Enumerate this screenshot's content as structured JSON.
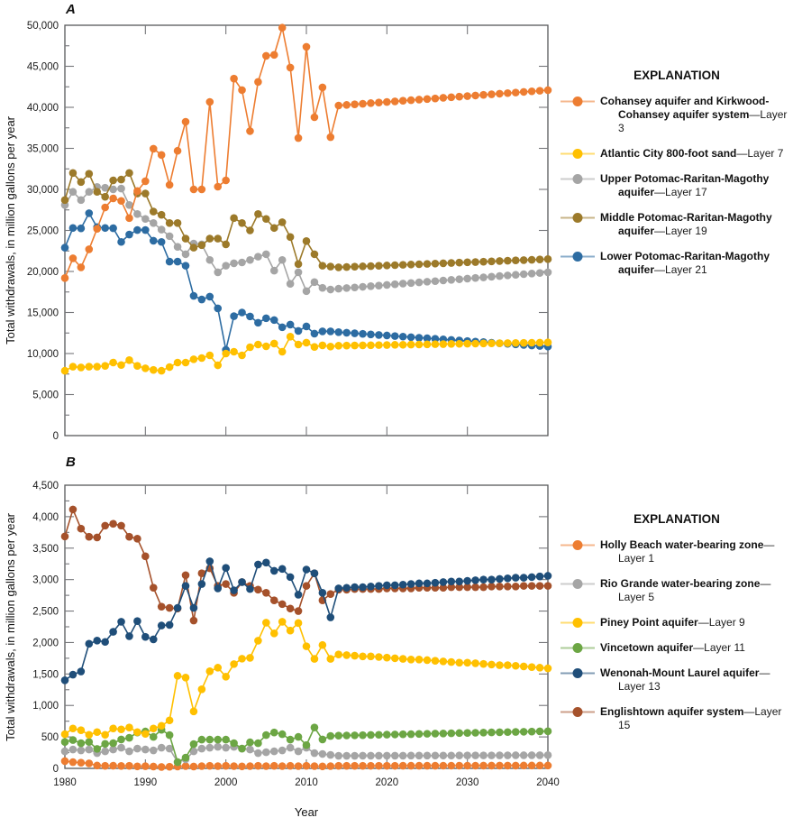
{
  "chart_data": [
    {
      "panel_label": "A",
      "type": "line",
      "ylabel": "Total withdrawals, in million gallons per year",
      "xlabel": "",
      "legend_title": "EXPLANATION",
      "ylim": [
        0,
        50000
      ],
      "ytick_major": 5000,
      "ytick_minor": 2500,
      "x": {
        "start": 1980,
        "end": 2040,
        "tick_step": 10
      },
      "grid": false,
      "legend_position": "right",
      "series": [
        {
          "label_bold": "Cohansey aquifer and Kirkwood-Cohansey aquifer system",
          "label_rest": "Layer 3",
          "layer_num": 3,
          "color": "#ED7D31",
          "values": [
            19200,
            21600,
            20500,
            22700,
            25200,
            27800,
            28900,
            28600,
            26500,
            29800,
            31000,
            34950,
            34200,
            30550,
            34700,
            38240,
            30000,
            30000,
            40660,
            30330,
            31100,
            43500,
            42100,
            37100,
            43100,
            46270,
            46390,
            49700,
            44840,
            36260,
            47370,
            38790,
            42420,
            36370,
            40220,
            40290,
            40360,
            40430,
            40510,
            40580,
            40650,
            40720,
            40800,
            40870,
            40940,
            41010,
            41080,
            41160,
            41230,
            41300,
            41370,
            41440,
            41520,
            41590,
            41660,
            41730,
            41800,
            41880,
            41950,
            42020,
            42090
          ]
        },
        {
          "label_bold": "Atlantic City 800-foot sand",
          "label_rest": "Layer 7",
          "layer_num": 7,
          "color": "#FFC000",
          "values": [
            7900,
            8400,
            8300,
            8400,
            8400,
            8500,
            8900,
            8600,
            9200,
            8500,
            8200,
            8000,
            7900,
            8350,
            8900,
            8900,
            9300,
            9450,
            9780,
            8570,
            10000,
            10220,
            9780,
            10770,
            11100,
            10880,
            11220,
            10220,
            12050,
            11100,
            11330,
            10800,
            11000,
            10850,
            10950,
            10970,
            10980,
            11000,
            11010,
            11030,
            11040,
            11060,
            11070,
            11090,
            11100,
            11120,
            11140,
            11150,
            11170,
            11180,
            11200,
            11210,
            11230,
            11240,
            11260,
            11270,
            11290,
            11300,
            11320,
            11330,
            11350
          ]
        },
        {
          "label_bold": "Upper Potomac-Raritan-Magothy aquifer",
          "label_rest": "Layer 17",
          "layer_num": 17,
          "color": "#A5A5A5",
          "values": [
            28100,
            29700,
            28700,
            29700,
            30300,
            30200,
            30000,
            30100,
            28100,
            27000,
            26400,
            25900,
            25100,
            24300,
            23000,
            22100,
            23400,
            23300,
            21400,
            19900,
            20700,
            21000,
            21100,
            21400,
            21800,
            22100,
            20100,
            21400,
            18500,
            19900,
            17600,
            18700,
            18000,
            17800,
            17900,
            17980,
            18050,
            18130,
            18210,
            18280,
            18360,
            18440,
            18520,
            18590,
            18670,
            18750,
            18820,
            18900,
            18980,
            19050,
            19130,
            19210,
            19280,
            19360,
            19440,
            19520,
            19590,
            19670,
            19750,
            19820,
            19900
          ]
        },
        {
          "label_bold": "Middle Potomac-Raritan-Magothy aquifer",
          "label_rest": "Layer 19",
          "layer_num": 19,
          "color": "#9C7A2A",
          "values": [
            28700,
            32000,
            30900,
            31900,
            29700,
            29100,
            31100,
            31200,
            32000,
            29500,
            29500,
            27300,
            26900,
            25900,
            25900,
            24000,
            22900,
            23200,
            24000,
            24000,
            23300,
            26500,
            25900,
            25000,
            27000,
            26400,
            25300,
            26000,
            24200,
            20900,
            23700,
            22100,
            20700,
            20600,
            20500,
            20540,
            20580,
            20620,
            20650,
            20690,
            20730,
            20770,
            20810,
            20850,
            20880,
            20920,
            20960,
            21000,
            21040,
            21080,
            21120,
            21150,
            21190,
            21230,
            21270,
            21310,
            21350,
            21380,
            21420,
            21460,
            21500
          ]
        },
        {
          "label_bold": "Lower Potomac-Raritan-Magothy aquifer",
          "label_rest": "Layer 21",
          "layer_num": 21,
          "color": "#2D6CA2",
          "values": [
            22900,
            25300,
            25250,
            27100,
            25400,
            25300,
            25270,
            23600,
            24500,
            25050,
            25050,
            23740,
            23600,
            21200,
            21200,
            20700,
            17030,
            16590,
            16930,
            15500,
            10450,
            14550,
            15000,
            14520,
            13750,
            14300,
            14080,
            13200,
            13520,
            12750,
            13300,
            12420,
            12700,
            12700,
            12600,
            12530,
            12470,
            12400,
            12330,
            12260,
            12200,
            12130,
            12060,
            11990,
            11920,
            11860,
            11790,
            11720,
            11660,
            11590,
            11520,
            11450,
            11390,
            11320,
            11250,
            11180,
            11120,
            11050,
            10980,
            10920,
            10850
          ]
        }
      ]
    },
    {
      "panel_label": "B",
      "type": "line",
      "ylabel": "Total withdrawals, in million gallons per year",
      "xlabel": "Year",
      "legend_title": "EXPLANATION",
      "ylim": [
        0,
        4500
      ],
      "ytick_major": 500,
      "ytick_minor": 250,
      "x": {
        "start": 1980,
        "end": 2040,
        "tick_step": 10
      },
      "grid": false,
      "legend_position": "right",
      "series": [
        {
          "label_bold": "Holly Beach water-bearing zone",
          "label_rest": "Layer 1",
          "layer_num": 1,
          "color": "#ED7D31",
          "values": [
            115,
            100,
            90,
            80,
            45,
            40,
            42,
            38,
            40,
            32,
            35,
            30,
            22,
            26,
            30,
            36,
            30,
            36,
            40,
            36,
            40,
            36,
            32,
            36,
            40,
            36,
            40,
            36,
            40,
            36,
            40,
            36,
            32,
            36,
            40,
            40,
            40,
            40,
            41,
            41,
            41,
            41,
            42,
            42,
            42,
            42,
            42,
            43,
            43,
            43,
            43,
            43,
            44,
            44,
            44,
            44,
            44,
            45,
            45,
            45,
            45
          ]
        },
        {
          "label_bold": "Rio Grande water-bearing zone",
          "label_rest": "Layer 5",
          "layer_num": 5,
          "color": "#A5A5A5",
          "values": [
            271,
            300,
            286,
            300,
            243,
            271,
            300,
            329,
            271,
            314,
            300,
            286,
            329,
            314,
            100,
            143,
            271,
            314,
            329,
            343,
            329,
            343,
            314,
            300,
            243,
            257,
            271,
            286,
            329,
            271,
            329,
            243,
            229,
            214,
            200,
            200,
            200,
            201,
            201,
            201,
            202,
            202,
            202,
            203,
            203,
            203,
            204,
            204,
            204,
            205,
            205,
            206,
            206,
            206,
            207,
            207,
            208,
            208,
            209,
            209,
            210
          ]
        },
        {
          "label_bold": "Piney Point aquifer",
          "label_rest": "Layer 9",
          "layer_num": 9,
          "color": "#FFC000",
          "values": [
            543,
            634,
            606,
            534,
            577,
            534,
            634,
            620,
            649,
            577,
            548,
            634,
            677,
            763,
            1471,
            1443,
            906,
            1257,
            1543,
            1600,
            1457,
            1657,
            1743,
            1757,
            2029,
            2315,
            2145,
            2330,
            2190,
            2310,
            1940,
            1740,
            1960,
            1740,
            1810,
            1800,
            1790,
            1780,
            1780,
            1770,
            1760,
            1750,
            1740,
            1730,
            1730,
            1720,
            1710,
            1700,
            1690,
            1680,
            1680,
            1670,
            1660,
            1650,
            1640,
            1640,
            1630,
            1620,
            1610,
            1600,
            1590
          ]
        },
        {
          "label_bold": "Vincetown aquifer",
          "label_rest": "Layer 11",
          "layer_num": 11,
          "color": "#6CA644",
          "values": [
            420,
            450,
            400,
            420,
            310,
            390,
            400,
            460,
            486,
            571,
            586,
            500,
            614,
            529,
            100,
            171,
            386,
            457,
            457,
            457,
            457,
            400,
            314,
            414,
            400,
            529,
            571,
            543,
            457,
            500,
            370,
            650,
            460,
            515,
            520,
            523,
            525,
            528,
            531,
            534,
            536,
            539,
            542,
            544,
            547,
            550,
            553,
            555,
            558,
            561,
            563,
            566,
            569,
            572,
            574,
            577,
            580,
            582,
            585,
            588,
            590
          ]
        },
        {
          "label_bold": "Wenonah-Mount Laurel aquifer",
          "label_rest": "Layer 13",
          "layer_num": 13,
          "color": "#1F4E79",
          "values": [
            1400,
            1490,
            1540,
            1980,
            2030,
            2010,
            2170,
            2330,
            2100,
            2340,
            2090,
            2050,
            2270,
            2280,
            2550,
            2900,
            2550,
            2930,
            3290,
            2860,
            3186,
            2830,
            2960,
            2850,
            3240,
            3270,
            3140,
            3170,
            3040,
            2760,
            3160,
            3100,
            2790,
            2400,
            2860,
            2870,
            2880,
            2880,
            2890,
            2900,
            2910,
            2910,
            2920,
            2930,
            2940,
            2940,
            2950,
            2960,
            2970,
            2970,
            2980,
            2990,
            3000,
            3000,
            3010,
            3020,
            3030,
            3030,
            3040,
            3050,
            3060
          ]
        },
        {
          "label_bold": "Englishtown aquifer system",
          "label_rest": "Layer 15",
          "layer_num": 15,
          "color": "#A5512B",
          "values": [
            3686,
            4114,
            3810,
            3680,
            3670,
            3857,
            3886,
            3857,
            3680,
            3650,
            3370,
            2871,
            2570,
            2550,
            2540,
            3070,
            2350,
            3100,
            3180,
            2900,
            2930,
            2790,
            2960,
            2900,
            2840,
            2790,
            2670,
            2610,
            2540,
            2500,
            2900,
            3100,
            2670,
            2770,
            2840,
            2840,
            2850,
            2850,
            2850,
            2850,
            2860,
            2860,
            2860,
            2860,
            2870,
            2870,
            2870,
            2870,
            2880,
            2880,
            2880,
            2880,
            2880,
            2890,
            2890,
            2890,
            2890,
            2900,
            2900,
            2900,
            2900
          ]
        }
      ]
    }
  ]
}
